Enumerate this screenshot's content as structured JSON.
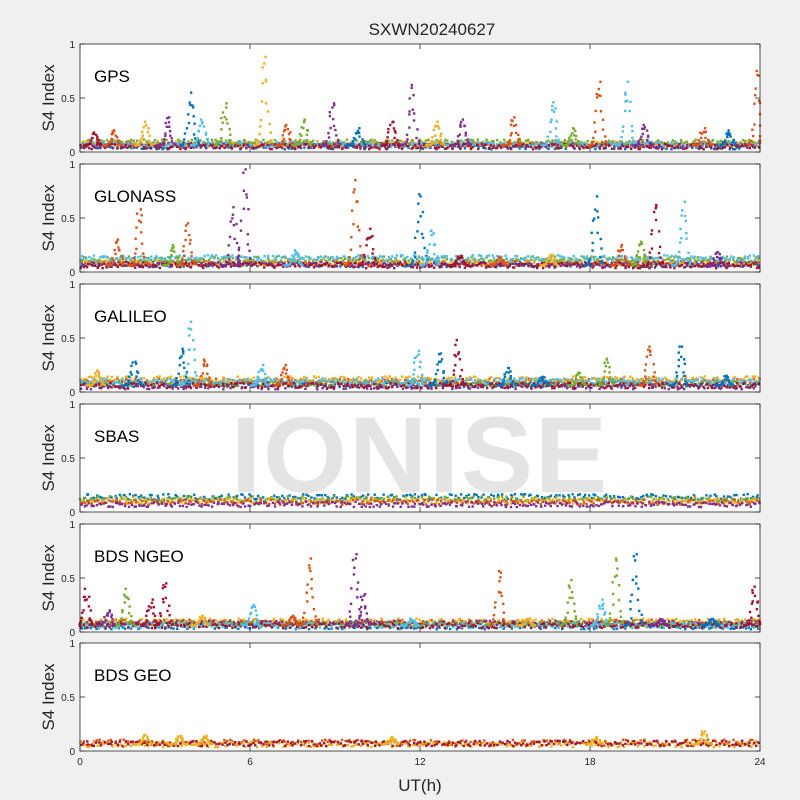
{
  "figure": {
    "title": "SXWN20240627",
    "watermark": "IONISE",
    "xlabel": "UT(h)",
    "background": "#f0f0f0"
  },
  "colors": {
    "axes_background": "#ffffff",
    "axes_line": "#262626",
    "watermark": "#e0e0e0"
  },
  "chart_data": [
    {
      "type": "scatter",
      "panel_label": "GPS",
      "ylabel": "S4 Index",
      "xlim": [
        0,
        24
      ],
      "ylim": [
        0,
        1
      ],
      "xticks": [
        0,
        6,
        12,
        18,
        24
      ],
      "yticks": [
        0,
        0.5,
        1
      ],
      "ytick_labels": [
        "0",
        "0.5",
        "1"
      ],
      "grid": false,
      "baseline_bands": [
        {
          "color": "#0072BD",
          "level": 0.05
        },
        {
          "color": "#D95319",
          "level": 0.07
        },
        {
          "color": "#EDB120",
          "level": 0.08
        },
        {
          "color": "#7E2F8E",
          "level": 0.06
        },
        {
          "color": "#77AC30",
          "level": 0.09
        },
        {
          "color": "#4DBEEE",
          "level": 0.07
        },
        {
          "color": "#A2142F",
          "level": 0.05
        }
      ],
      "spikes": [
        {
          "x": 0.5,
          "peak": 0.18,
          "color": "#A2142F"
        },
        {
          "x": 1.2,
          "peak": 0.2,
          "color": "#D95319"
        },
        {
          "x": 2.3,
          "peak": 0.28,
          "color": "#EDB120"
        },
        {
          "x": 3.1,
          "peak": 0.32,
          "color": "#7E2F8E"
        },
        {
          "x": 3.9,
          "peak": 0.55,
          "color": "#0072BD"
        },
        {
          "x": 4.3,
          "peak": 0.3,
          "color": "#4DBEEE"
        },
        {
          "x": 5.1,
          "peak": 0.45,
          "color": "#77AC30"
        },
        {
          "x": 6.5,
          "peak": 0.88,
          "color": "#EDB120"
        },
        {
          "x": 7.3,
          "peak": 0.25,
          "color": "#D95319"
        },
        {
          "x": 7.9,
          "peak": 0.3,
          "color": "#77AC30"
        },
        {
          "x": 8.9,
          "peak": 0.45,
          "color": "#7E2F8E"
        },
        {
          "x": 9.8,
          "peak": 0.22,
          "color": "#0072BD"
        },
        {
          "x": 11.0,
          "peak": 0.28,
          "color": "#A2142F"
        },
        {
          "x": 11.7,
          "peak": 0.62,
          "color": "#7E2F8E"
        },
        {
          "x": 12.6,
          "peak": 0.28,
          "color": "#EDB120"
        },
        {
          "x": 13.5,
          "peak": 0.3,
          "color": "#7E2F8E"
        },
        {
          "x": 15.3,
          "peak": 0.32,
          "color": "#D95319"
        },
        {
          "x": 16.7,
          "peak": 0.46,
          "color": "#4DBEEE"
        },
        {
          "x": 17.4,
          "peak": 0.22,
          "color": "#77AC30"
        },
        {
          "x": 18.3,
          "peak": 0.65,
          "color": "#D95319"
        },
        {
          "x": 19.3,
          "peak": 0.65,
          "color": "#4DBEEE"
        },
        {
          "x": 19.9,
          "peak": 0.25,
          "color": "#7E2F8E"
        },
        {
          "x": 22.0,
          "peak": 0.22,
          "color": "#D95319"
        },
        {
          "x": 22.9,
          "peak": 0.2,
          "color": "#0072BD"
        },
        {
          "x": 23.9,
          "peak": 0.75,
          "color": "#D95319"
        }
      ]
    },
    {
      "type": "scatter",
      "panel_label": "GLONASS",
      "ylabel": "S4 Index",
      "xlim": [
        0,
        24
      ],
      "ylim": [
        0,
        1
      ],
      "xticks": [
        0,
        6,
        12,
        18,
        24
      ],
      "yticks": [
        0,
        0.5,
        1
      ],
      "ytick_labels": [
        "0",
        "0.5",
        "1"
      ],
      "grid": false,
      "baseline_bands": [
        {
          "color": "#0072BD",
          "level": 0.07
        },
        {
          "color": "#D95319",
          "level": 0.08
        },
        {
          "color": "#EDB120",
          "level": 0.09
        },
        {
          "color": "#7E2F8E",
          "level": 0.07
        },
        {
          "color": "#77AC30",
          "level": 0.12
        },
        {
          "color": "#4DBEEE",
          "level": 0.13
        },
        {
          "color": "#A2142F",
          "level": 0.06
        }
      ],
      "spikes": [
        {
          "x": 1.3,
          "peak": 0.3,
          "color": "#D95319"
        },
        {
          "x": 2.1,
          "peak": 0.58,
          "color": "#D95319"
        },
        {
          "x": 3.3,
          "peak": 0.25,
          "color": "#77AC30"
        },
        {
          "x": 3.8,
          "peak": 0.45,
          "color": "#D95319"
        },
        {
          "x": 5.4,
          "peak": 0.6,
          "color": "#7E2F8E"
        },
        {
          "x": 5.8,
          "peak": 0.95,
          "color": "#7E2F8E"
        },
        {
          "x": 7.6,
          "peak": 0.2,
          "color": "#4DBEEE"
        },
        {
          "x": 9.7,
          "peak": 0.85,
          "color": "#D95319"
        },
        {
          "x": 10.2,
          "peak": 0.4,
          "color": "#A2142F"
        },
        {
          "x": 12.0,
          "peak": 0.72,
          "color": "#0072BD"
        },
        {
          "x": 12.4,
          "peak": 0.38,
          "color": "#4DBEEE"
        },
        {
          "x": 13.4,
          "peak": 0.15,
          "color": "#A2142F"
        },
        {
          "x": 14.8,
          "peak": 0.14,
          "color": "#D95319"
        },
        {
          "x": 16.6,
          "peak": 0.16,
          "color": "#EDB120"
        },
        {
          "x": 18.2,
          "peak": 0.7,
          "color": "#0072BD"
        },
        {
          "x": 19.1,
          "peak": 0.25,
          "color": "#D95319"
        },
        {
          "x": 19.8,
          "peak": 0.28,
          "color": "#77AC30"
        },
        {
          "x": 20.3,
          "peak": 0.62,
          "color": "#A2142F"
        },
        {
          "x": 21.3,
          "peak": 0.65,
          "color": "#4DBEEE"
        },
        {
          "x": 22.5,
          "peak": 0.18,
          "color": "#7E2F8E"
        }
      ]
    },
    {
      "type": "scatter",
      "panel_label": "GALILEO",
      "ylabel": "S4 Index",
      "xlim": [
        0,
        24
      ],
      "ylim": [
        0,
        1
      ],
      "xticks": [
        0,
        6,
        12,
        18,
        24
      ],
      "yticks": [
        0,
        0.5,
        1
      ],
      "ytick_labels": [
        "0",
        "0.5",
        "1"
      ],
      "grid": false,
      "baseline_bands": [
        {
          "color": "#0072BD",
          "level": 0.07
        },
        {
          "color": "#D95319",
          "level": 0.1
        },
        {
          "color": "#EDB120",
          "level": 0.12
        },
        {
          "color": "#7E2F8E",
          "level": 0.05
        },
        {
          "color": "#77AC30",
          "level": 0.08
        },
        {
          "color": "#4DBEEE",
          "level": 0.1
        },
        {
          "color": "#A2142F",
          "level": 0.06
        }
      ],
      "spikes": [
        {
          "x": 0.6,
          "peak": 0.2,
          "color": "#EDB120"
        },
        {
          "x": 1.9,
          "peak": 0.28,
          "color": "#0072BD"
        },
        {
          "x": 3.6,
          "peak": 0.4,
          "color": "#0072BD"
        },
        {
          "x": 3.9,
          "peak": 0.65,
          "color": "#4DBEEE"
        },
        {
          "x": 4.4,
          "peak": 0.3,
          "color": "#D95319"
        },
        {
          "x": 6.4,
          "peak": 0.25,
          "color": "#4DBEEE"
        },
        {
          "x": 7.2,
          "peak": 0.25,
          "color": "#D95319"
        },
        {
          "x": 11.9,
          "peak": 0.38,
          "color": "#4DBEEE"
        },
        {
          "x": 12.7,
          "peak": 0.35,
          "color": "#0072BD"
        },
        {
          "x": 13.3,
          "peak": 0.48,
          "color": "#A2142F"
        },
        {
          "x": 15.1,
          "peak": 0.22,
          "color": "#0072BD"
        },
        {
          "x": 16.3,
          "peak": 0.14,
          "color": "#0072BD"
        },
        {
          "x": 17.6,
          "peak": 0.18,
          "color": "#77AC30"
        },
        {
          "x": 18.6,
          "peak": 0.3,
          "color": "#77AC30"
        },
        {
          "x": 20.1,
          "peak": 0.42,
          "color": "#D95319"
        },
        {
          "x": 21.2,
          "peak": 0.42,
          "color": "#0072BD"
        },
        {
          "x": 22.8,
          "peak": 0.15,
          "color": "#0072BD"
        }
      ]
    },
    {
      "type": "scatter",
      "panel_label": "SBAS",
      "ylabel": "S4 Index",
      "xlim": [
        0,
        24
      ],
      "ylim": [
        0,
        1
      ],
      "xticks": [
        0,
        6,
        12,
        18,
        24
      ],
      "yticks": [
        0,
        0.5,
        1
      ],
      "ytick_labels": [
        "0",
        "0.5",
        "1"
      ],
      "grid": false,
      "baseline_bands": [
        {
          "color": "#0072BD",
          "level": 0.14
        },
        {
          "color": "#77AC30",
          "level": 0.12
        },
        {
          "color": "#EDB120",
          "level": 0.1
        },
        {
          "color": "#D95319",
          "level": 0.09
        },
        {
          "color": "#7E2F8E",
          "level": 0.07
        }
      ],
      "spikes": []
    },
    {
      "type": "scatter",
      "panel_label": "BDS NGEO",
      "ylabel": "S4 Index",
      "xlim": [
        0,
        24
      ],
      "ylim": [
        0,
        1
      ],
      "xticks": [
        0,
        6,
        12,
        18,
        24
      ],
      "yticks": [
        0,
        0.5,
        1
      ],
      "ytick_labels": [
        "0",
        "0.5",
        "1"
      ],
      "grid": false,
      "baseline_bands": [
        {
          "color": "#0072BD",
          "level": 0.05
        },
        {
          "color": "#D95319",
          "level": 0.09
        },
        {
          "color": "#EDB120",
          "level": 0.1
        },
        {
          "color": "#7E2F8E",
          "level": 0.08
        },
        {
          "color": "#77AC30",
          "level": 0.07
        },
        {
          "color": "#4DBEEE",
          "level": 0.06
        },
        {
          "color": "#A2142F",
          "level": 0.06
        }
      ],
      "spikes": [
        {
          "x": 0.2,
          "peak": 0.4,
          "color": "#A2142F"
        },
        {
          "x": 1.0,
          "peak": 0.2,
          "color": "#7E2F8E"
        },
        {
          "x": 1.6,
          "peak": 0.4,
          "color": "#77AC30"
        },
        {
          "x": 2.5,
          "peak": 0.3,
          "color": "#A2142F"
        },
        {
          "x": 3.0,
          "peak": 0.45,
          "color": "#A2142F"
        },
        {
          "x": 4.3,
          "peak": 0.15,
          "color": "#EDB120"
        },
        {
          "x": 6.1,
          "peak": 0.25,
          "color": "#4DBEEE"
        },
        {
          "x": 7.5,
          "peak": 0.15,
          "color": "#D95319"
        },
        {
          "x": 8.1,
          "peak": 0.68,
          "color": "#D95319"
        },
        {
          "x": 9.7,
          "peak": 0.72,
          "color": "#7E2F8E"
        },
        {
          "x": 10.0,
          "peak": 0.35,
          "color": "#7E2F8E"
        },
        {
          "x": 11.7,
          "peak": 0.12,
          "color": "#4DBEEE"
        },
        {
          "x": 14.8,
          "peak": 0.55,
          "color": "#D95319"
        },
        {
          "x": 15.8,
          "peak": 0.12,
          "color": "#EDB120"
        },
        {
          "x": 17.3,
          "peak": 0.48,
          "color": "#77AC30"
        },
        {
          "x": 18.4,
          "peak": 0.3,
          "color": "#4DBEEE"
        },
        {
          "x": 18.9,
          "peak": 0.68,
          "color": "#77AC30"
        },
        {
          "x": 19.6,
          "peak": 0.72,
          "color": "#0072BD"
        },
        {
          "x": 20.5,
          "peak": 0.12,
          "color": "#7E2F8E"
        },
        {
          "x": 22.3,
          "peak": 0.12,
          "color": "#0072BD"
        },
        {
          "x": 23.8,
          "peak": 0.42,
          "color": "#A2142F"
        }
      ]
    },
    {
      "type": "scatter",
      "panel_label": "BDS GEO",
      "ylabel": "S4 Index",
      "xlim": [
        0,
        24
      ],
      "ylim": [
        0,
        1
      ],
      "xticks": [
        0,
        6,
        12,
        18,
        24
      ],
      "yticks": [
        0,
        0.5,
        1
      ],
      "ytick_labels": [
        "0",
        "0.5",
        "1"
      ],
      "grid": false,
      "baseline_bands": [
        {
          "color": "#D95319",
          "level": 0.08
        },
        {
          "color": "#EDB120",
          "level": 0.06
        },
        {
          "color": "#A2142F",
          "level": 0.07
        }
      ],
      "spikes": [
        {
          "x": 2.3,
          "peak": 0.15,
          "color": "#EDB120"
        },
        {
          "x": 3.5,
          "peak": 0.14,
          "color": "#EDB120"
        },
        {
          "x": 4.4,
          "peak": 0.14,
          "color": "#EDB120"
        },
        {
          "x": 11.0,
          "peak": 0.13,
          "color": "#EDB120"
        },
        {
          "x": 18.2,
          "peak": 0.13,
          "color": "#EDB120"
        },
        {
          "x": 22.0,
          "peak": 0.18,
          "color": "#EDB120"
        }
      ]
    }
  ]
}
